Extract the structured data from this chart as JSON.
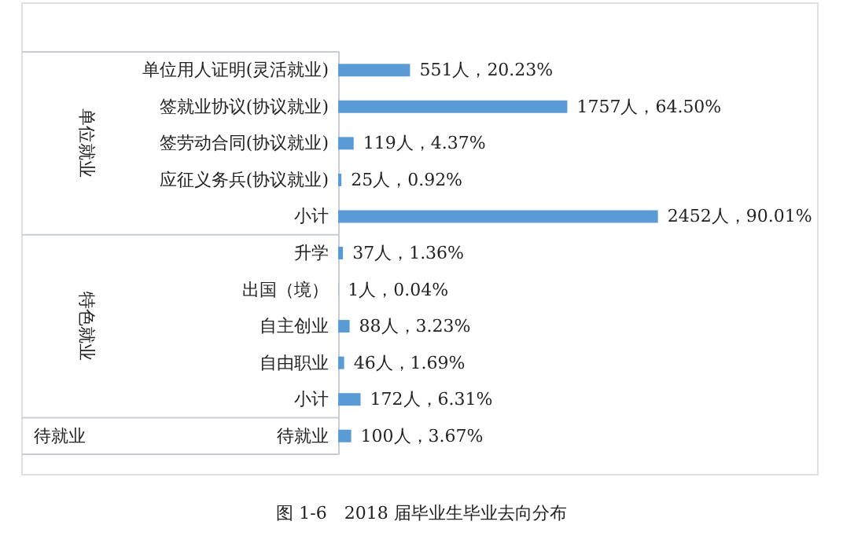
{
  "chart_data": {
    "type": "bar",
    "orientation": "horizontal",
    "title": "图 1-6　2018 届毕业生毕业去向分布",
    "categories": [
      "单位用人证明(灵活就业)",
      "签就业协议(协议就业)",
      "签劳动合同(协议就业)",
      "应征义务兵(协议就业)",
      "小计",
      "升学",
      "出国（境）",
      "自主创业",
      "自由职业",
      "小计",
      "待就业"
    ],
    "values": [
      551,
      1757,
      119,
      25,
      2452,
      37,
      1,
      88,
      46,
      172,
      100
    ],
    "value_labels": [
      "551人，20.23%",
      "1757人，64.50%",
      "119人，4.37%",
      "25人，0.92%",
      "2452人，90.01%",
      "37人，1.36%",
      "1人，0.04%",
      "88人，3.23%",
      "46人，1.69%",
      "172人，6.31%",
      "100人，3.67%"
    ],
    "color": "#5b9bd5",
    "annotations": [
      "单位就业",
      "特色就业",
      "待就业"
    ]
  }
}
